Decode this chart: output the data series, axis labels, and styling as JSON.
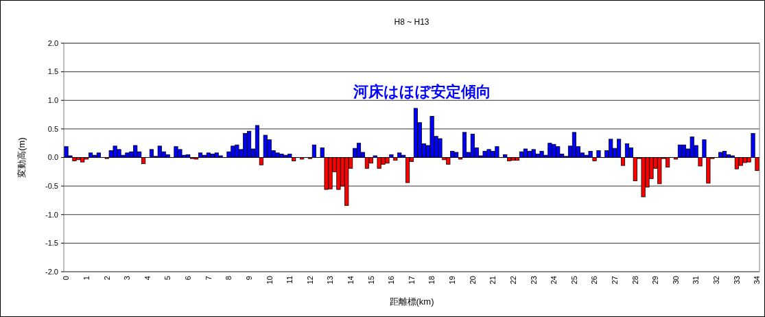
{
  "chart_data": {
    "type": "bar",
    "title": "H8 ~ H13",
    "xlabel": "距離標(km)",
    "ylabel": "変動高(m)",
    "annotations": [
      "河床はほぼ安定傾向"
    ],
    "x": [
      0,
      0.2,
      0.4,
      0.6,
      0.8,
      1,
      1.2,
      1.4,
      1.6,
      1.8,
      2,
      2.2,
      2.4,
      2.6,
      2.8,
      3,
      3.2,
      3.4,
      3.6,
      3.8,
      4,
      4.2,
      4.4,
      4.6,
      4.8,
      5,
      5.2,
      5.4,
      5.6,
      5.8,
      6,
      6.2,
      6.4,
      6.6,
      6.8,
      7,
      7.2,
      7.4,
      7.6,
      7.8,
      8,
      8.2,
      8.4,
      8.6,
      8.8,
      9,
      9.2,
      9.4,
      9.6,
      9.8,
      10,
      10.2,
      10.4,
      10.6,
      10.8,
      11,
      11.2,
      11.4,
      11.6,
      11.8,
      12,
      12.2,
      12.4,
      12.6,
      12.8,
      13,
      13.2,
      13.4,
      13.6,
      13.8,
      14,
      14.2,
      14.4,
      14.6,
      14.8,
      15,
      15.2,
      15.4,
      15.6,
      15.8,
      16,
      16.2,
      16.4,
      16.6,
      16.8,
      17,
      17.2,
      17.4,
      17.6,
      17.8,
      18,
      18.2,
      18.4,
      18.6,
      18.8,
      19,
      19.2,
      19.4,
      19.6,
      19.8,
      20,
      20.2,
      20.4,
      20.6,
      20.8,
      21,
      21.2,
      21.4,
      21.6,
      21.8,
      22,
      22.2,
      22.4,
      22.6,
      22.8,
      23,
      23.2,
      23.4,
      23.6,
      23.8,
      24,
      24.2,
      24.4,
      24.6,
      24.8,
      25,
      25.2,
      25.4,
      25.6,
      25.8,
      26,
      26.2,
      26.4,
      26.6,
      26.8,
      27,
      27.2,
      27.4,
      27.6,
      27.8,
      28,
      28.2,
      28.4,
      28.6,
      28.8,
      29,
      29.2,
      29.4,
      29.6,
      29.8,
      30,
      30.2,
      30.4,
      30.6,
      30.8,
      31,
      31.2,
      31.4,
      31.6,
      31.8,
      32,
      32.2,
      32.4,
      32.6,
      32.8,
      33,
      33.2,
      33.4,
      33.6,
      33.8,
      34
    ],
    "values": [
      0.19,
      0.03,
      -0.06,
      -0.04,
      -0.08,
      -0.03,
      0.08,
      0.04,
      0.08,
      0,
      -0.02,
      0.12,
      0.2,
      0.14,
      0.04,
      0.08,
      0.1,
      0.21,
      0.1,
      -0.11,
      0,
      0.14,
      0.02,
      0.2,
      0.1,
      0.05,
      0,
      0.19,
      0.14,
      0.04,
      0.05,
      -0.02,
      -0.03,
      0.08,
      0.04,
      0.08,
      0.06,
      0.08,
      0.03,
      0,
      0.1,
      0.2,
      0.22,
      0.14,
      0.42,
      0.46,
      0.15,
      0.56,
      -0.13,
      0.39,
      0.31,
      0.12,
      0.08,
      0.06,
      0.04,
      0.06,
      -0.06,
      0,
      -0.03,
      0,
      -0.02,
      0.22,
      0,
      0.17,
      -0.56,
      -0.55,
      -0.25,
      -0.56,
      -0.5,
      -0.84,
      -0.19,
      0.16,
      0.25,
      0.09,
      -0.19,
      -0.1,
      0.03,
      -0.19,
      -0.12,
      -0.1,
      0.05,
      -0.05,
      0.08,
      0.04,
      -0.44,
      -0.07,
      0.86,
      0.61,
      0.24,
      0.21,
      0.72,
      0.37,
      0.33,
      -0.04,
      -0.12,
      0.11,
      0.09,
      -0.03,
      0.44,
      0.09,
      0.41,
      0.17,
      0.03,
      0.11,
      0.14,
      0.11,
      0.19,
      0,
      0.05,
      -0.06,
      -0.05,
      -0.05,
      0.1,
      0.15,
      0.11,
      0.14,
      0.06,
      0.11,
      0.04,
      0.25,
      0.23,
      0.19,
      0.06,
      0.02,
      0.2,
      0.44,
      0.19,
      0.08,
      0.04,
      0.11,
      -0.06,
      0.12,
      0,
      0.12,
      0.32,
      0.16,
      0.32,
      -0.14,
      0.24,
      0.17,
      -0.41,
      -0.02,
      -0.69,
      -0.52,
      -0.37,
      -0.19,
      -0.46,
      -0.02,
      -0.17,
      0,
      -0.03,
      0.22,
      0.22,
      0.15,
      0.36,
      0.21,
      -0.15,
      0.31,
      -0.45,
      -0.02,
      0,
      0.09,
      0.11,
      0.05,
      0.03,
      -0.2,
      -0.14,
      -0.09,
      -0.08,
      0.42,
      -0.23
    ],
    "colors": [
      "#0000ff",
      "#0000ff",
      "#ff0000",
      "#ff0000",
      "#ff0000",
      "#ff0000",
      "#0000ff",
      "#0000ff",
      "#0000ff",
      "#0000ff",
      "#ff0000",
      "#0000ff",
      "#0000ff",
      "#0000ff",
      "#0000ff",
      "#0000ff",
      "#0000ff",
      "#0000ff",
      "#0000ff",
      "#ff0000",
      "#0000ff",
      "#0000ff",
      "#0000ff",
      "#0000ff",
      "#0000ff",
      "#0000ff",
      "#0000ff",
      "#0000ff",
      "#0000ff",
      "#0000ff",
      "#0000ff",
      "#ff0000",
      "#ff0000",
      "#0000ff",
      "#0000ff",
      "#0000ff",
      "#0000ff",
      "#0000ff",
      "#0000ff",
      "#0000ff",
      "#0000ff",
      "#0000ff",
      "#0000ff",
      "#0000ff",
      "#0000ff",
      "#0000ff",
      "#0000ff",
      "#0000ff",
      "#ff0000",
      "#0000ff",
      "#0000ff",
      "#0000ff",
      "#0000ff",
      "#0000ff",
      "#0000ff",
      "#0000ff",
      "#ff0000",
      "#0000ff",
      "#ff0000",
      "#0000ff",
      "#ff0000",
      "#0000ff",
      "#0000ff",
      "#0000ff",
      "#ff0000",
      "#ff0000",
      "#ff0000",
      "#ff0000",
      "#ff0000",
      "#ff0000",
      "#ff0000",
      "#0000ff",
      "#0000ff",
      "#0000ff",
      "#ff0000",
      "#ff0000",
      "#0000ff",
      "#ff0000",
      "#ff0000",
      "#ff0000",
      "#0000ff",
      "#ff0000",
      "#0000ff",
      "#0000ff",
      "#ff0000",
      "#ff0000",
      "#0000ff",
      "#0000ff",
      "#0000ff",
      "#0000ff",
      "#0000ff",
      "#0000ff",
      "#0000ff",
      "#ff0000",
      "#ff0000",
      "#0000ff",
      "#0000ff",
      "#ff0000",
      "#0000ff",
      "#0000ff",
      "#0000ff",
      "#0000ff",
      "#0000ff",
      "#0000ff",
      "#0000ff",
      "#0000ff",
      "#0000ff",
      "#0000ff",
      "#0000ff",
      "#ff0000",
      "#ff0000",
      "#ff0000",
      "#0000ff",
      "#0000ff",
      "#0000ff",
      "#0000ff",
      "#0000ff",
      "#0000ff",
      "#0000ff",
      "#0000ff",
      "#0000ff",
      "#0000ff",
      "#0000ff",
      "#0000ff",
      "#0000ff",
      "#0000ff",
      "#0000ff",
      "#0000ff",
      "#0000ff",
      "#0000ff",
      "#ff0000",
      "#0000ff",
      "#0000ff",
      "#0000ff",
      "#0000ff",
      "#0000ff",
      "#0000ff",
      "#ff0000",
      "#0000ff",
      "#0000ff",
      "#ff0000",
      "#ff0000",
      "#ff0000",
      "#ff0000",
      "#ff0000",
      "#ff0000",
      "#ff0000",
      "#ff0000",
      "#ff0000",
      "#0000ff",
      "#ff0000",
      "#0000ff",
      "#0000ff",
      "#0000ff",
      "#0000ff",
      "#0000ff",
      "#ff0000",
      "#0000ff",
      "#ff0000",
      "#ff0000",
      "#0000ff",
      "#0000ff",
      "#0000ff",
      "#0000ff",
      "#0000ff",
      "#ff0000",
      "#ff0000",
      "#ff0000",
      "#ff0000",
      "#0000ff",
      "#ff0000"
    ],
    "xlim": [
      -0.12,
      34.12
    ],
    "xticks": [
      0,
      1,
      2,
      3,
      4,
      5,
      6,
      7,
      8,
      9,
      10,
      11,
      12,
      13,
      14,
      15,
      16,
      17,
      18,
      19,
      20,
      21,
      22,
      23,
      24,
      25,
      26,
      27,
      28,
      29,
      30,
      31,
      32,
      33,
      34
    ],
    "ylim": [
      -2,
      2
    ],
    "yticks": [
      {
        "value": -2,
        "label": "-2.0"
      },
      {
        "value": -1.5,
        "label": "-1.5"
      },
      {
        "value": -1,
        "label": "-1.0"
      },
      {
        "value": -0.5,
        "label": "-0.5"
      },
      {
        "value": 0,
        "label": "0.0"
      },
      {
        "value": 0.5,
        "label": "0.5"
      },
      {
        "value": 1,
        "label": "1.0"
      },
      {
        "value": 1.5,
        "label": "1.5"
      },
      {
        "value": 2,
        "label": "2.0"
      }
    ],
    "grid": "y"
  }
}
